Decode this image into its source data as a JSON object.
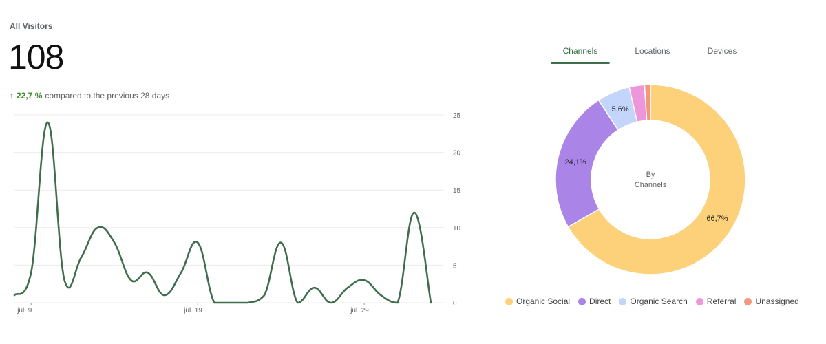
{
  "header": {
    "title": "All Visitors",
    "total": "108",
    "change_arrow": "↑",
    "change_value": "22,7 %",
    "change_text": "compared to the previous 28 days"
  },
  "tabs": [
    {
      "label": "Channels",
      "active": true
    },
    {
      "label": "Locations",
      "active": false
    },
    {
      "label": "Devices",
      "active": false
    }
  ],
  "colors": {
    "line": "#3f6e4d",
    "grid": "#ebebeb",
    "axis_text": "#5f6368"
  },
  "chart_data": [
    {
      "type": "line",
      "title": "",
      "xlabel": "",
      "ylabel": "",
      "ylim": [
        0,
        25
      ],
      "yticks": [
        0,
        5,
        10,
        15,
        20,
        25
      ],
      "y_axis_side": "right",
      "grid": true,
      "x_tick_labels": [
        {
          "index": 1,
          "label": "jul. 9"
        },
        {
          "index": 11,
          "label": "jul. 19"
        },
        {
          "index": 21,
          "label": "jul. 29"
        }
      ],
      "series": [
        {
          "values": [
            1,
            4,
            24,
            3,
            6,
            10,
            8,
            3,
            4,
            1,
            4,
            8,
            0,
            0,
            0,
            1,
            8,
            0,
            2,
            0,
            2,
            3,
            1,
            0,
            12,
            0
          ]
        }
      ]
    },
    {
      "type": "pie",
      "style": "donut",
      "center_label": [
        "By",
        "Channels"
      ],
      "slices": [
        {
          "label": "Organic Social",
          "value": 66.7,
          "display": "66,7%",
          "color": "#fdd07a"
        },
        {
          "label": "Direct",
          "value": 24.1,
          "display": "24,1%",
          "color": "#aa84e6"
        },
        {
          "label": "Organic Search",
          "value": 5.6,
          "display": "5,6%",
          "color": "#c3d5fb"
        },
        {
          "label": "Referral",
          "value": 2.6,
          "display": "",
          "color": "#ee96dc"
        },
        {
          "label": "Unassigned",
          "value": 1.0,
          "display": "",
          "color": "#f4977c"
        }
      ],
      "legend_position": "bottom"
    }
  ]
}
